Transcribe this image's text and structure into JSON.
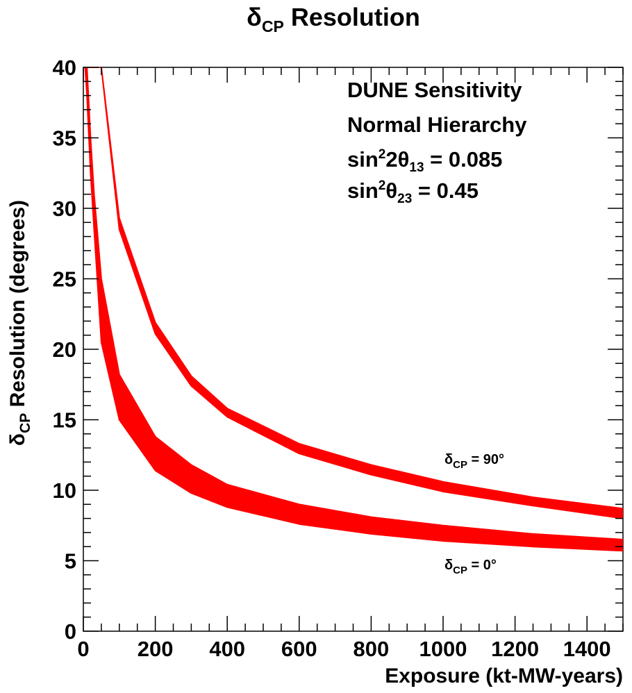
{
  "chart_data": {
    "type": "area",
    "title": {
      "main": "δ",
      "sub": "CP",
      "rest": " Resolution"
    },
    "xlabel": "Exposure (kt-MW-years)",
    "ylabel": {
      "main": "δ",
      "sub": "CP",
      "rest": " Resolution (degrees)"
    },
    "xlim": [
      0,
      1500
    ],
    "ylim": [
      0,
      40
    ],
    "x_ticks": [
      0,
      200,
      400,
      600,
      800,
      1000,
      1200,
      1400
    ],
    "y_ticks": [
      0,
      5,
      10,
      15,
      20,
      25,
      30,
      35,
      40
    ],
    "color": "#ff0000",
    "annotation": [
      {
        "text": "DUNE Sensitivity"
      },
      {
        "text": "Normal Hierarchy"
      },
      {
        "pre": "sin",
        "sup": "2",
        "mid": "2θ",
        "sub": "13",
        "post": " = 0.085"
      },
      {
        "pre": "sin",
        "sup": "2",
        "mid": "θ",
        "sub": "23",
        "post": " = 0.45"
      }
    ],
    "series": [
      {
        "label": {
          "main": "δ",
          "sub": "CP",
          "rest": " = 90°"
        },
        "x": [
          5,
          10,
          20,
          30,
          50,
          100,
          200,
          300,
          400,
          600,
          800,
          1000,
          1250,
          1500
        ],
        "upper": [
          40,
          40,
          40,
          40,
          40,
          29.3,
          21.9,
          18.1,
          15.8,
          13.3,
          11.8,
          10.6,
          9.5,
          8.7
        ],
        "lower": [
          40,
          40,
          40,
          40,
          40,
          28.5,
          21.1,
          17.4,
          15.2,
          12.6,
          11.1,
          9.9,
          8.9,
          8.0
        ]
      },
      {
        "label": {
          "main": "δ",
          "sub": "CP",
          "rest": " = 0°"
        },
        "x": [
          5,
          10,
          20,
          30,
          50,
          100,
          200,
          300,
          400,
          600,
          800,
          1000,
          1250,
          1500
        ],
        "upper": [
          40,
          40,
          35.0,
          31.0,
          25.0,
          18.2,
          13.8,
          11.8,
          10.4,
          9.0,
          8.1,
          7.5,
          6.9,
          6.5
        ],
        "lower": [
          40,
          38.0,
          32.5,
          28.5,
          20.5,
          15.0,
          11.4,
          9.8,
          8.8,
          7.6,
          6.9,
          6.4,
          6.0,
          5.7
        ]
      }
    ]
  }
}
